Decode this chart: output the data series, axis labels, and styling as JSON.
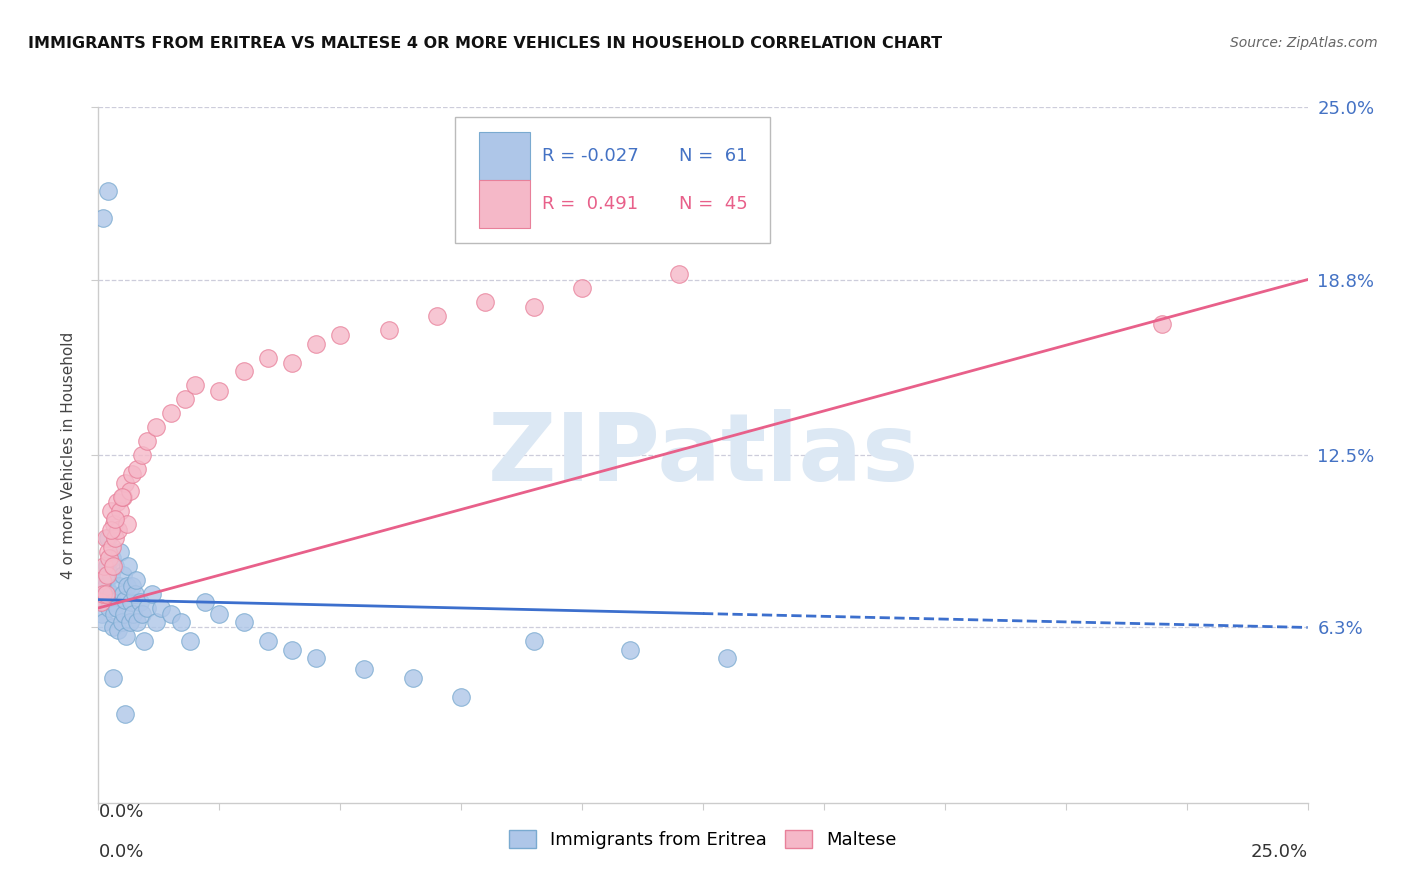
{
  "title": "IMMIGRANTS FROM ERITREA VS MALTESE 4 OR MORE VEHICLES IN HOUSEHOLD CORRELATION CHART",
  "source": "Source: ZipAtlas.com",
  "ylabel": "4 or more Vehicles in Household",
  "xmin": 0.0,
  "xmax": 25.0,
  "ymin": 0.0,
  "ymax": 25.0,
  "yticks_right": [
    6.3,
    12.5,
    18.8,
    25.0
  ],
  "ytick_labels_right": [
    "6.3%",
    "12.5%",
    "18.8%",
    "25.0%"
  ],
  "series1_name": "Immigrants from Eritrea",
  "series1_color": "#aec6e8",
  "series1_edge": "#7aaad0",
  "series1_R": -0.027,
  "series1_N": 61,
  "series1_line_color": "#3c6fcd",
  "series2_name": "Maltese",
  "series2_color": "#f5b8c8",
  "series2_edge": "#e8809a",
  "series2_R": 0.491,
  "series2_N": 45,
  "series2_line_color": "#e8608a",
  "watermark_text": "ZIPatlas",
  "watermark_color": "#dce8f4",
  "title_fontsize": 11.5,
  "source_fontsize": 10,
  "legend_R1": "R = -0.027",
  "legend_N1": "N =  61",
  "legend_R2": "R =  0.491",
  "legend_N2": "N =  45",
  "series1_x": [
    0.05,
    0.08,
    0.1,
    0.12,
    0.15,
    0.15,
    0.18,
    0.2,
    0.22,
    0.25,
    0.25,
    0.28,
    0.3,
    0.3,
    0.32,
    0.35,
    0.38,
    0.4,
    0.42,
    0.45,
    0.48,
    0.5,
    0.5,
    0.52,
    0.55,
    0.58,
    0.6,
    0.62,
    0.65,
    0.68,
    0.7,
    0.72,
    0.75,
    0.78,
    0.8,
    0.85,
    0.9,
    0.95,
    1.0,
    1.1,
    1.2,
    1.3,
    1.5,
    1.7,
    1.9,
    2.2,
    2.5,
    3.0,
    3.5,
    4.0,
    4.5,
    5.5,
    6.5,
    7.5,
    9.0,
    11.0,
    13.0,
    0.1,
    0.2,
    0.3,
    0.55
  ],
  "series1_y": [
    7.2,
    6.8,
    7.5,
    6.5,
    8.0,
    7.8,
    8.5,
    9.5,
    7.0,
    8.2,
    7.5,
    8.8,
    6.3,
    7.2,
    6.8,
    8.5,
    7.0,
    6.2,
    7.8,
    9.0,
    6.5,
    7.5,
    8.2,
    6.8,
    7.3,
    6.0,
    7.8,
    8.5,
    6.5,
    7.2,
    7.8,
    6.8,
    7.5,
    8.0,
    6.5,
    7.2,
    6.8,
    5.8,
    7.0,
    7.5,
    6.5,
    7.0,
    6.8,
    6.5,
    5.8,
    7.2,
    6.8,
    6.5,
    5.8,
    5.5,
    5.2,
    4.8,
    4.5,
    3.8,
    5.8,
    5.5,
    5.2,
    21.0,
    22.0,
    4.5,
    3.2
  ],
  "series2_x": [
    0.05,
    0.08,
    0.1,
    0.12,
    0.15,
    0.18,
    0.2,
    0.22,
    0.25,
    0.28,
    0.3,
    0.32,
    0.35,
    0.38,
    0.4,
    0.45,
    0.5,
    0.55,
    0.6,
    0.65,
    0.7,
    0.8,
    0.9,
    1.0,
    1.2,
    1.5,
    1.8,
    2.0,
    2.5,
    3.0,
    3.5,
    4.0,
    4.5,
    5.0,
    6.0,
    7.0,
    8.0,
    9.0,
    10.0,
    12.0,
    0.15,
    0.25,
    0.35,
    0.48,
    22.0
  ],
  "series2_y": [
    7.2,
    8.0,
    7.5,
    8.5,
    9.5,
    8.2,
    9.0,
    8.8,
    10.5,
    9.2,
    8.5,
    10.0,
    9.5,
    10.8,
    9.8,
    10.5,
    11.0,
    11.5,
    10.0,
    11.2,
    11.8,
    12.0,
    12.5,
    13.0,
    13.5,
    14.0,
    14.5,
    15.0,
    14.8,
    15.5,
    16.0,
    15.8,
    16.5,
    16.8,
    17.0,
    17.5,
    18.0,
    17.8,
    18.5,
    19.0,
    7.5,
    9.8,
    10.2,
    11.0,
    17.2
  ],
  "blue_line_x": [
    0.0,
    12.5,
    25.0
  ],
  "blue_line_y": [
    7.3,
    6.8,
    6.3
  ],
  "blue_line_solid_end": 12.5,
  "pink_line_x": [
    0.0,
    25.0
  ],
  "pink_line_y_start": 7.0,
  "pink_line_y_end": 18.8
}
